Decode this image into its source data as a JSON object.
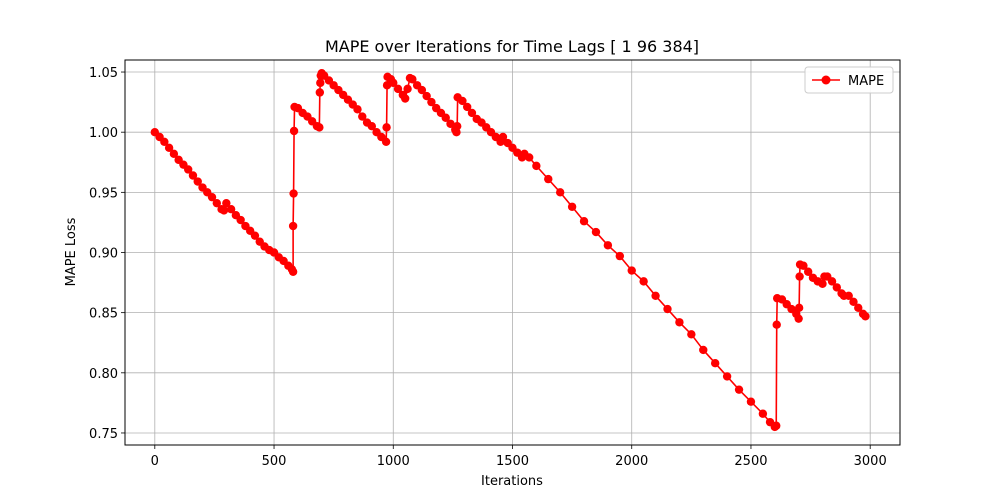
{
  "chart_data": {
    "type": "line",
    "title": "MAPE over Iterations for Time Lags [  1  96 384]",
    "xlabel": "Iterations",
    "ylabel": "MAPE Loss",
    "xlim": [
      -125,
      3125
    ],
    "ylim": [
      0.74,
      1.06
    ],
    "xticks": [
      0,
      500,
      1000,
      1500,
      2000,
      2500,
      3000
    ],
    "xtick_labels": [
      "0",
      "500",
      "1000",
      "1500",
      "2000",
      "2500",
      "3000"
    ],
    "yticks": [
      0.75,
      0.8,
      0.85,
      0.9,
      0.95,
      1.0,
      1.05
    ],
    "ytick_labels": [
      "0.75",
      "0.80",
      "0.85",
      "0.90",
      "0.95",
      "1.00",
      "1.05"
    ],
    "grid": true,
    "legend": {
      "position": "upper right",
      "entries": [
        "MAPE"
      ]
    },
    "series": [
      {
        "name": "MAPE",
        "color": "#ff0000",
        "marker": "circle",
        "points": [
          [
            0,
            1.0
          ],
          [
            20,
            0.996
          ],
          [
            40,
            0.992
          ],
          [
            60,
            0.987
          ],
          [
            80,
            0.982
          ],
          [
            100,
            0.977
          ],
          [
            120,
            0.973
          ],
          [
            140,
            0.969
          ],
          [
            160,
            0.964
          ],
          [
            180,
            0.959
          ],
          [
            200,
            0.954
          ],
          [
            220,
            0.95
          ],
          [
            240,
            0.946
          ],
          [
            260,
            0.941
          ],
          [
            280,
            0.936
          ],
          [
            290,
            0.935
          ],
          [
            300,
            0.941
          ],
          [
            320,
            0.936
          ],
          [
            340,
            0.931
          ],
          [
            360,
            0.927
          ],
          [
            380,
            0.922
          ],
          [
            400,
            0.918
          ],
          [
            420,
            0.914
          ],
          [
            440,
            0.909
          ],
          [
            460,
            0.905
          ],
          [
            480,
            0.902
          ],
          [
            500,
            0.9
          ],
          [
            520,
            0.896
          ],
          [
            540,
            0.893
          ],
          [
            560,
            0.889
          ],
          [
            575,
            0.886
          ],
          [
            580,
            0.884
          ],
          [
            580,
            0.922
          ],
          [
            582,
            0.949
          ],
          [
            584,
            1.001
          ],
          [
            586,
            1.021
          ],
          [
            600,
            1.02
          ],
          [
            620,
            1.016
          ],
          [
            640,
            1.013
          ],
          [
            660,
            1.009
          ],
          [
            680,
            1.005
          ],
          [
            690,
            1.004
          ],
          [
            692,
            1.033
          ],
          [
            694,
            1.041
          ],
          [
            696,
            1.047
          ],
          [
            700,
            1.049
          ],
          [
            710,
            1.047
          ],
          [
            730,
            1.043
          ],
          [
            750,
            1.039
          ],
          [
            770,
            1.035
          ],
          [
            790,
            1.031
          ],
          [
            810,
            1.027
          ],
          [
            830,
            1.023
          ],
          [
            850,
            1.019
          ],
          [
            870,
            1.013
          ],
          [
            890,
            1.008
          ],
          [
            910,
            1.005
          ],
          [
            930,
            1.0
          ],
          [
            950,
            0.996
          ],
          [
            970,
            0.992
          ],
          [
            972,
            1.004
          ],
          [
            974,
            1.039
          ],
          [
            976,
            1.046
          ],
          [
            990,
            1.044
          ],
          [
            1000,
            1.041
          ],
          [
            1020,
            1.036
          ],
          [
            1040,
            1.031
          ],
          [
            1050,
            1.028
          ],
          [
            1060,
            1.036
          ],
          [
            1070,
            1.045
          ],
          [
            1080,
            1.044
          ],
          [
            1100,
            1.039
          ],
          [
            1120,
            1.035
          ],
          [
            1140,
            1.03
          ],
          [
            1160,
            1.025
          ],
          [
            1180,
            1.02
          ],
          [
            1200,
            1.016
          ],
          [
            1220,
            1.012
          ],
          [
            1240,
            1.007
          ],
          [
            1260,
            1.002
          ],
          [
            1265,
            1.0
          ],
          [
            1268,
            1.005
          ],
          [
            1270,
            1.029
          ],
          [
            1290,
            1.026
          ],
          [
            1310,
            1.021
          ],
          [
            1330,
            1.016
          ],
          [
            1350,
            1.011
          ],
          [
            1370,
            1.008
          ],
          [
            1390,
            1.004
          ],
          [
            1410,
            1.0
          ],
          [
            1430,
            0.996
          ],
          [
            1450,
            0.992
          ],
          [
            1460,
            0.996
          ],
          [
            1480,
            0.991
          ],
          [
            1500,
            0.987
          ],
          [
            1520,
            0.983
          ],
          [
            1540,
            0.979
          ],
          [
            1550,
            0.982
          ],
          [
            1570,
            0.979
          ],
          [
            1600,
            0.972
          ],
          [
            1650,
            0.961
          ],
          [
            1700,
            0.95
          ],
          [
            1750,
            0.938
          ],
          [
            1800,
            0.926
          ],
          [
            1850,
            0.917
          ],
          [
            1900,
            0.906
          ],
          [
            1950,
            0.897
          ],
          [
            2000,
            0.885
          ],
          [
            2050,
            0.876
          ],
          [
            2100,
            0.864
          ],
          [
            2150,
            0.853
          ],
          [
            2200,
            0.842
          ],
          [
            2250,
            0.832
          ],
          [
            2300,
            0.819
          ],
          [
            2350,
            0.808
          ],
          [
            2400,
            0.797
          ],
          [
            2450,
            0.786
          ],
          [
            2500,
            0.776
          ],
          [
            2550,
            0.766
          ],
          [
            2580,
            0.759
          ],
          [
            2600,
            0.755
          ],
          [
            2606,
            0.756
          ],
          [
            2608,
            0.84
          ],
          [
            2610,
            0.862
          ],
          [
            2630,
            0.861
          ],
          [
            2650,
            0.857
          ],
          [
            2670,
            0.853
          ],
          [
            2690,
            0.849
          ],
          [
            2700,
            0.845
          ],
          [
            2702,
            0.854
          ],
          [
            2704,
            0.88
          ],
          [
            2706,
            0.89
          ],
          [
            2720,
            0.889
          ],
          [
            2740,
            0.884
          ],
          [
            2760,
            0.879
          ],
          [
            2780,
            0.876
          ],
          [
            2800,
            0.874
          ],
          [
            2808,
            0.88
          ],
          [
            2820,
            0.88
          ],
          [
            2840,
            0.876
          ],
          [
            2860,
            0.871
          ],
          [
            2880,
            0.866
          ],
          [
            2890,
            0.864
          ],
          [
            2910,
            0.864
          ],
          [
            2930,
            0.859
          ],
          [
            2950,
            0.854
          ],
          [
            2970,
            0.849
          ],
          [
            2980,
            0.847
          ]
        ]
      }
    ]
  }
}
